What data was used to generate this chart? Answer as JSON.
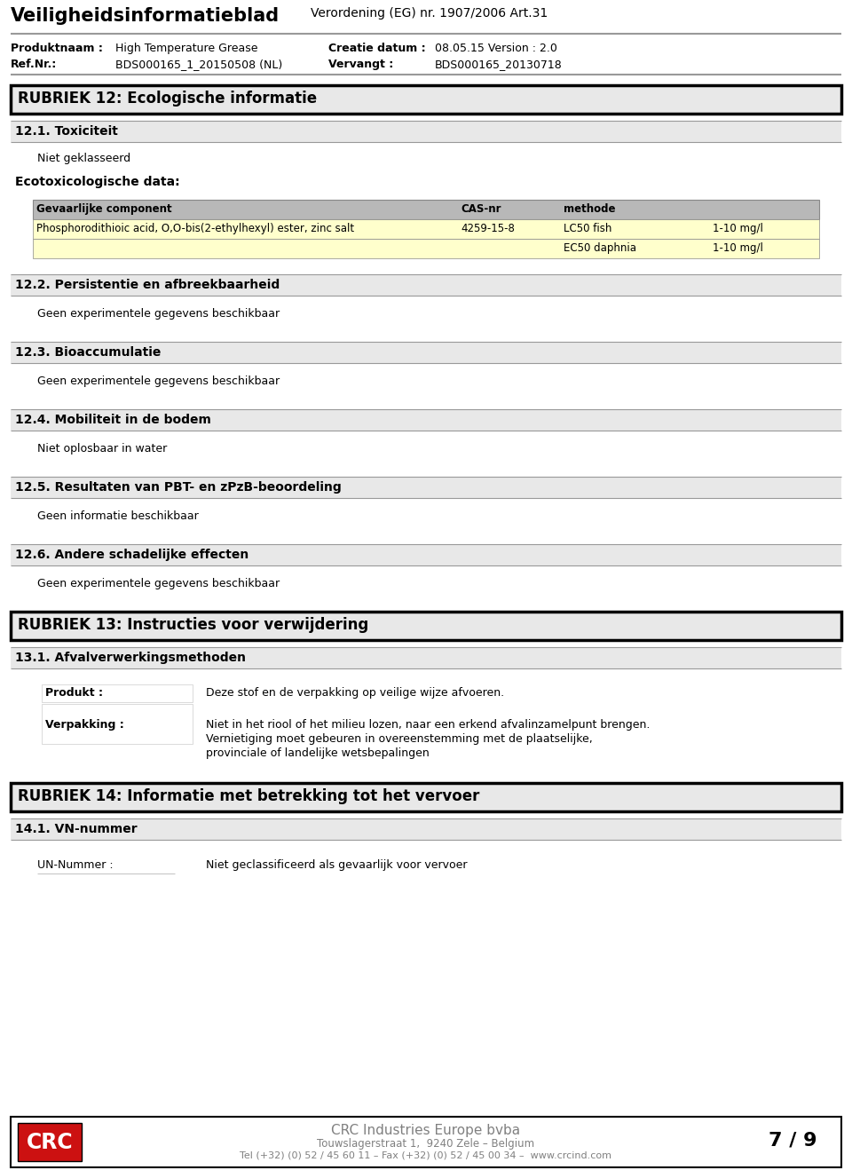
{
  "page_bg": "#ffffff",
  "header_title_left": "Veiligheidsinformatieblad",
  "header_title_right": "Verordening (EG) nr. 1907/2006 Art.31",
  "prod_label1": "Produktnaam :",
  "prod_value1": "High Temperature Grease",
  "prod_label2": "Ref.Nr.:",
  "prod_value2": "BDS000165_1_20150508 (NL)",
  "date_label1": "Creatie datum :",
  "date_value1": "08.05.15 Version : 2.0",
  "date_label2": "Vervangt :",
  "date_value2": "BDS000165_20130718",
  "section12_header": "RUBRIEK 12: Ecologische informatie",
  "section121_header": "12.1. Toxiciteit",
  "niet_geklasseerd": "Niet geklasseerd",
  "ecotox_header": "Ecotoxicologische data:",
  "table_col0_header": "Gevaarlijke component",
  "table_col1_header": "CAS-nr",
  "table_col2_header": "methode",
  "table_col3_header": "",
  "table_row1_col0": "Phosphorodithioic acid, O,O-bis(2-ethylhexyl) ester, zinc salt",
  "table_row1_col1": "4259-15-8",
  "table_row1_col2": "LC50 fish",
  "table_row1_col3": "1-10 mg/l",
  "table_row2_col0": "",
  "table_row2_col1": "",
  "table_row2_col2": "EC50 daphnia",
  "table_row2_col3": "1-10 mg/l",
  "section122_header": "12.2. Persistentie en afbreekbaarheid",
  "section122_text": "Geen experimentele gegevens beschikbaar",
  "section123_header": "12.3. Bioaccumulatie",
  "section123_text": "Geen experimentele gegevens beschikbaar",
  "section124_header": "12.4. Mobiliteit in de bodem",
  "section124_text": "Niet oplosbaar in water",
  "section125_header": "12.5. Resultaten van PBT- en zPzB-beoordeling",
  "section125_text": "Geen informatie beschikbaar",
  "section126_header": "12.6. Andere schadelijke effecten",
  "section126_text": "Geen experimentele gegevens beschikbaar",
  "section13_header": "RUBRIEK 13: Instructies voor verwijdering",
  "section131_header": "13.1. Afvalverwerkingsmethoden",
  "product_label": "Produkt :",
  "product_text": "Deze stof en de verpakking op veilige wijze afvoeren.",
  "verpakking_label": "Verpakking :",
  "verpakking_line1": "Niet in het riool of het milieu lozen, naar een erkend afvalinzamelpunt brengen.",
  "verpakking_line2": "Vernietiging moet gebeuren in overeenstemming met de plaatselijke,",
  "verpakking_line3": "provinciale of landelijke wetsbepalingen",
  "section14_header": "RUBRIEK 14: Informatie met betrekking tot het vervoer",
  "section141_header": "14.1. VN-nummer",
  "un_label": "UN-Nummer :",
  "un_text": "Niet geclassificeerd als gevaarlijk voor vervoer",
  "footer_company": "CRC Industries Europe bvba",
  "footer_address": "Touwslagerstraat 1,  9240 Zele – Belgium",
  "footer_tel": "Tel (+32) (0) 52 / 45 60 11 – Fax (+32) (0) 52 / 45 00 34 –  www.crcind.com",
  "footer_page": "7 / 9",
  "color_gray_light": "#e8e8e8",
  "color_gray_mid": "#d0d0d0",
  "color_table_header": "#b8b8b8",
  "color_table_row": "#ffffcc",
  "color_footer_text": "#808080",
  "color_rubriek_bg": "#e8e8e8"
}
